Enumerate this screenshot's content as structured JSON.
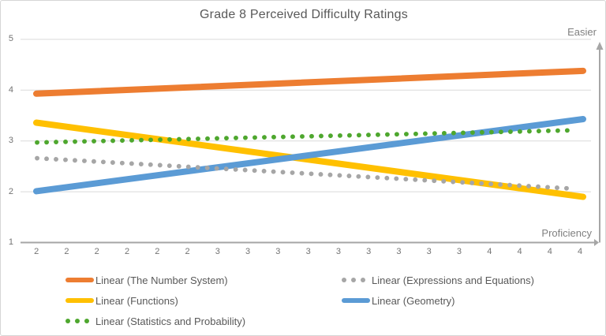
{
  "chart_data": {
    "type": "line",
    "title": "Grade 8 Perceived Difficulty Ratings",
    "xlabel": "Proficiency",
    "ylabel": "Easier",
    "ylim": [
      1,
      5
    ],
    "y_ticks": [
      1,
      2,
      3,
      4,
      5
    ],
    "x_tick_labels": [
      "2",
      "2",
      "2",
      "2",
      "2",
      "2",
      "3",
      "3",
      "3",
      "3",
      "3",
      "3",
      "3",
      "3",
      "3",
      "4",
      "4",
      "4",
      "4"
    ],
    "grid": true,
    "legend_position": "bottom-two-columns",
    "series": [
      {
        "key": "the-number-system",
        "name": "Linear (The Number System)",
        "color": "#ED7D31",
        "style": "solid",
        "trend": {
          "start": 3.93,
          "end": 4.38
        }
      },
      {
        "key": "expressions-and-equations",
        "name": "Linear (Expressions and Equations)",
        "color": "#A6A6A6",
        "style": "dotted",
        "trend": {
          "start": 2.66,
          "end": 2.06
        }
      },
      {
        "key": "functions",
        "name": "Linear (Functions)",
        "color": "#FFC000",
        "style": "solid",
        "trend": {
          "start": 3.36,
          "end": 1.9
        }
      },
      {
        "key": "geometry",
        "name": "Linear (Geometry)",
        "color": "#5B9BD5",
        "style": "solid",
        "trend": {
          "start": 2.01,
          "end": 3.43
        }
      },
      {
        "key": "statistics-and-probability",
        "name": "Linear (Statistics and Probability)",
        "color": "#4EA72E",
        "style": "dotted",
        "trend": {
          "start": 2.97,
          "end": 3.21
        }
      }
    ],
    "colors": {
      "gridline": "#DADADA",
      "axis": "#A6A6A6",
      "tick_text": "#737373",
      "title_text": "#595959",
      "legend_text": "#595959"
    }
  }
}
